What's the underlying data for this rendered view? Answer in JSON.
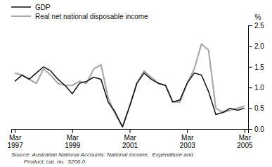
{
  "chart_data": {
    "type": "line",
    "y_label": "%",
    "annotations": [
      "Source: Australian National Accounts: National Income,  Expenditure and",
      "        Product, cat. no.  5206.0."
    ],
    "categories": [
      "Mar\n1997",
      null,
      null,
      null,
      null,
      null,
      null,
      null,
      "Mar\n1999",
      null,
      null,
      null,
      null,
      null,
      null,
      null,
      "Mar\n2001",
      null,
      null,
      null,
      null,
      null,
      null,
      null,
      "Mar\n2003",
      null,
      null,
      null,
      null,
      null,
      null,
      null,
      "Mar\n2005"
    ],
    "series": [
      {
        "name": "GDP",
        "color": "#111111",
        "values": [
          1.15,
          1.3,
          1.2,
          1.35,
          1.5,
          1.4,
          1.2,
          1.05,
          0.85,
          1.1,
          1.15,
          1.25,
          1.2,
          0.65,
          0.4,
          0.05,
          0.55,
          1.1,
          1.35,
          1.2,
          1.1,
          1.05,
          0.65,
          0.7,
          1.1,
          1.35,
          1.3,
          0.9,
          0.35,
          0.4,
          0.5,
          0.45,
          0.5
        ]
      },
      {
        "name": "Real net national disposable income",
        "color": "#aaaaaa",
        "values": [
          1.35,
          1.3,
          1.2,
          1.1,
          1.45,
          1.3,
          1.1,
          1.05,
          1.05,
          1.15,
          1.1,
          1.45,
          1.55,
          0.75,
          0.35,
          0.05,
          0.55,
          1.1,
          1.4,
          1.25,
          1.1,
          1.05,
          0.65,
          0.65,
          1.1,
          1.45,
          2.05,
          1.9,
          0.5,
          0.4,
          0.45,
          0.5,
          0.55
        ]
      }
    ],
    "ylim": [
      0,
      2.5
    ],
    "yticks": [
      {
        "value": 0,
        "label": "0.0"
      },
      0.5,
      {
        "value": 1,
        "label": "1.0"
      },
      1.5,
      {
        "value": 2,
        "label": "2.0"
      },
      2.5
    ],
    "grid": false,
    "legend": "top-left"
  }
}
